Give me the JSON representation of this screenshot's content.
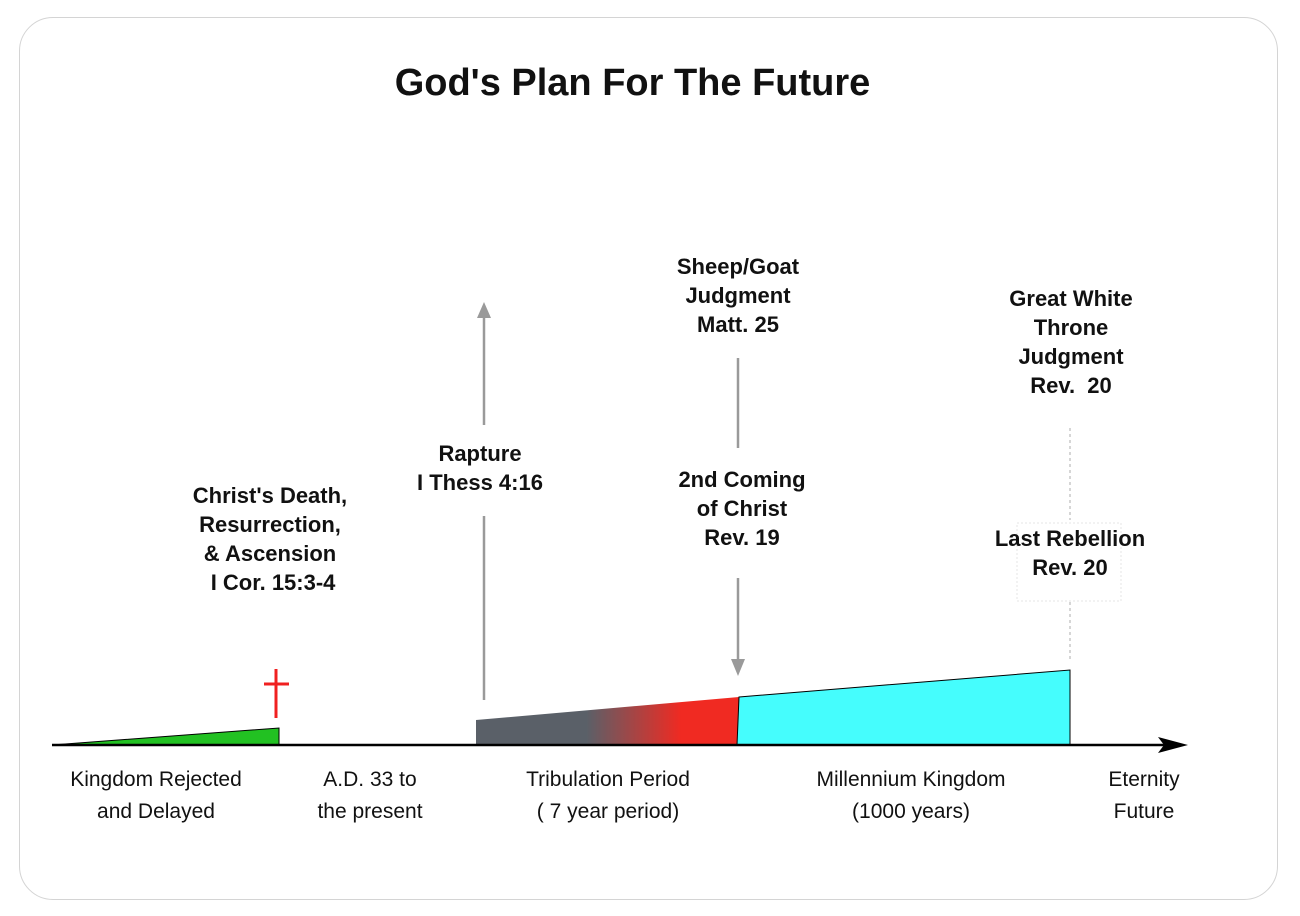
{
  "title": "God's Plan For The Future",
  "events": {
    "christs_death": [
      "Christ's Death,",
      "Resurrection,",
      "& Ascension",
      " I Cor. 15:3-4"
    ],
    "rapture": [
      "Rapture",
      "I Thess 4:16"
    ],
    "sheep_goat": [
      "Sheep/Goat",
      "Judgment",
      "Matt. 25"
    ],
    "second_coming": [
      "2nd Coming",
      "of Christ",
      "Rev. 19"
    ],
    "great_white_throne": [
      "Great White",
      "Throne",
      "Judgment",
      "Rev.  20"
    ],
    "last_rebellion": [
      "Last Rebellion",
      "Rev. 20"
    ]
  },
  "periods": {
    "kingdom_rejected": [
      "Kingdom Rejected",
      "and Delayed"
    ],
    "ad33": [
      "A.D. 33 to",
      "the present"
    ],
    "tribulation": [
      "Tribulation Period",
      "( 7 year period)"
    ],
    "millennium": [
      "Millennium Kingdom",
      "(1000 years)"
    ],
    "eternity": [
      "Eternity",
      "Future"
    ]
  },
  "colors": {
    "kingdom": "#22c122",
    "cross": "#f02020",
    "tribulation_start": "#5a6068",
    "tribulation_end": "#f02a22",
    "millennium": "#45fdfd",
    "arrow": "#9a9a9a",
    "timeline": "#000000"
  }
}
